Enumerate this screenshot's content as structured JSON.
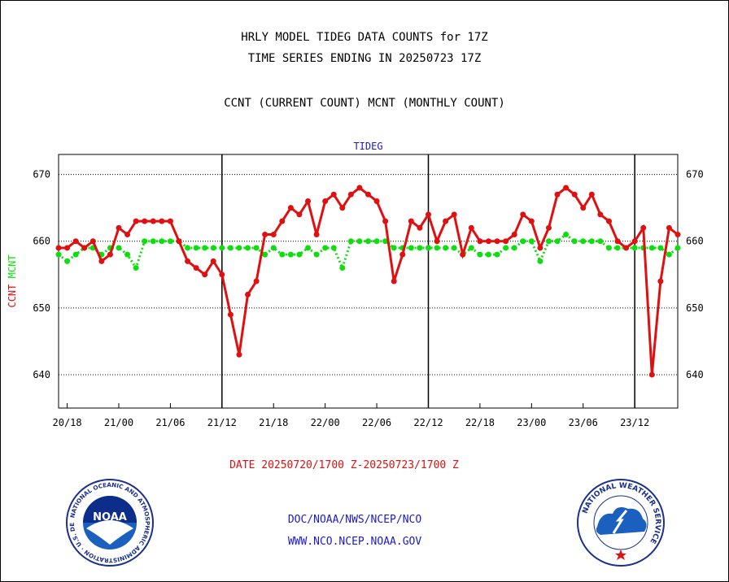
{
  "header": {
    "title_line1": "HRLY MODEL TIDEG DATA COUNTS for 17Z",
    "title_line2": "TIME SERIES ENDING IN 20250723 17Z",
    "title_line3": "CCNT (CURRENT COUNT) MCNT (MONTHLY COUNT)"
  },
  "footer": {
    "date_range": "DATE 20250720/1700 Z-20250723/1700 Z",
    "org": "DOC/NOAA/NWS/NCEP/NCO",
    "url": "WWW.NCO.NCEP.NOAA.GOV"
  },
  "logos": {
    "noaa": {
      "icon": "noaa-seal-icon",
      "text": "NOAA",
      "ring_text": "NATIONAL OCEANIC AND ATMOSPHERIC ADMINISTRATION · U.S. DEPARTMENT OF COMMERCE"
    },
    "nws": {
      "icon": "nws-seal-icon",
      "ring_text": "NATIONAL WEATHER SERVICE"
    }
  },
  "colors": {
    "ccnt": "#e01010",
    "mcnt": "#10dd10",
    "axis": "#000000",
    "subtitle": "#1a1acc",
    "footer": "#1a1acc"
  },
  "chart_data": {
    "type": "line",
    "subtitle": "TIDEG",
    "ylabel_parts": [
      {
        "text": "CCNT",
        "color": "#e01010"
      },
      {
        "text": "MCNT",
        "color": "#10dd10"
      }
    ],
    "ylim": [
      635,
      673
    ],
    "yticks": [
      640,
      650,
      660,
      670
    ],
    "x_ticks": [
      "20/18",
      "21/00",
      "21/06",
      "21/12",
      "21/18",
      "22/00",
      "22/06",
      "22/12",
      "22/18",
      "23/00",
      "23/06",
      "23/12"
    ],
    "x_tick_hours": [
      1,
      7,
      13,
      19,
      25,
      31,
      37,
      43,
      49,
      55,
      61,
      67
    ],
    "day_boundaries_hours": [
      19,
      43,
      67
    ],
    "x_start": "20250720 17Z",
    "x_end": "20250723 17Z",
    "grid": "horizontal dotted",
    "series": [
      {
        "name": "CCNT",
        "color": "#e01010",
        "values": [
          659,
          659,
          660,
          659,
          660,
          657,
          658,
          662,
          661,
          663,
          663,
          663,
          663,
          663,
          660,
          657,
          656,
          655,
          657,
          655,
          649,
          643,
          652,
          654,
          661,
          661,
          663,
          665,
          664,
          666,
          661,
          666,
          667,
          665,
          667,
          668,
          667,
          666,
          663,
          654,
          658,
          663,
          662,
          664,
          660,
          663,
          664,
          658,
          662,
          660,
          660,
          660,
          660,
          661,
          664,
          663,
          659,
          662,
          667,
          668,
          667,
          665,
          667,
          664,
          663,
          660,
          659,
          660,
          662,
          640,
          654,
          662,
          661
        ]
      },
      {
        "name": "MCNT",
        "color": "#10dd10",
        "values": [
          658,
          657,
          658,
          659,
          659,
          658,
          659,
          659,
          658,
          656,
          660,
          660,
          660,
          660,
          660,
          659,
          659,
          659,
          659,
          659,
          659,
          659,
          659,
          659,
          658,
          659,
          658,
          658,
          658,
          659,
          658,
          659,
          659,
          656,
          660,
          660,
          660,
          660,
          660,
          659,
          659,
          659,
          659,
          659,
          659,
          659,
          659,
          658,
          659,
          658,
          658,
          658,
          659,
          659,
          660,
          660,
          657,
          660,
          660,
          661,
          660,
          660,
          660,
          660,
          659,
          659,
          659,
          659,
          659,
          659,
          659,
          658,
          659
        ]
      }
    ]
  }
}
